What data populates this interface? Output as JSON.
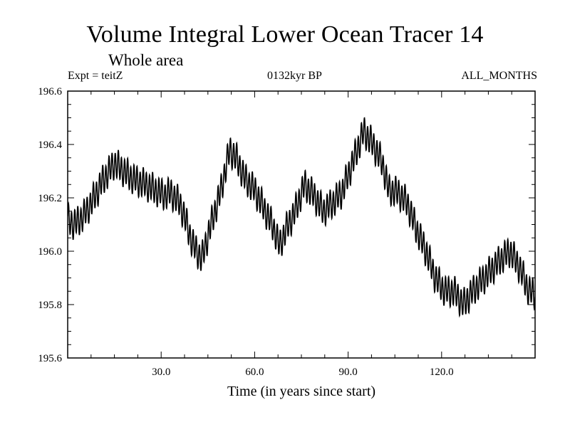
{
  "chart_data": {
    "type": "line",
    "title": "Volume Integral Lower Ocean Tracer 14",
    "subtitle": "Whole area",
    "experiment": "Expt = teitZ",
    "period": "0132kyr BP",
    "months": "ALL_MONTHS",
    "xlabel": "Time (in years since start)",
    "ylabel": "",
    "xlim": [
      0,
      150
    ],
    "ylim": [
      195.6,
      196.6
    ],
    "x_ticks": [
      30,
      60,
      90,
      120
    ],
    "x_tick_labels": [
      "30.0",
      "60.0",
      "90.0",
      "120.0"
    ],
    "y_ticks": [
      195.6,
      195.8,
      196.0,
      196.2,
      196.4,
      196.6
    ],
    "y_tick_labels": [
      "195.6",
      "195.8",
      "196.0",
      "196.2",
      "196.4",
      "196.6"
    ],
    "grid": false,
    "annual_cycle_amplitude": 0.05,
    "series": [
      {
        "name": "Volume Integral Lower Ocean Tracer 14",
        "color": "#000000",
        "x": [
          0,
          2,
          5,
          8,
          11,
          15,
          18,
          21,
          25,
          28,
          31,
          33,
          36,
          38,
          40,
          43,
          46,
          49,
          52,
          54,
          57,
          60,
          63,
          66,
          68,
          70,
          73,
          76,
          79,
          82,
          85,
          88,
          92,
          95,
          98,
          101,
          103,
          106,
          109,
          112,
          115,
          118,
          121,
          124,
          127,
          130,
          133,
          136,
          139,
          142,
          145,
          148,
          150
        ],
        "values": [
          196.12,
          196.1,
          196.13,
          196.19,
          196.26,
          196.33,
          196.3,
          196.27,
          196.25,
          196.23,
          196.21,
          196.22,
          196.18,
          196.11,
          196.03,
          195.97,
          196.1,
          196.22,
          196.38,
          196.35,
          196.27,
          196.23,
          196.16,
          196.09,
          196.02,
          196.08,
          196.15,
          196.25,
          196.21,
          196.15,
          196.18,
          196.22,
          196.35,
          196.45,
          196.4,
          196.33,
          196.23,
          196.22,
          196.18,
          196.08,
          196.0,
          195.9,
          195.85,
          195.85,
          195.8,
          195.85,
          195.89,
          195.93,
          195.97,
          196.0,
          195.94,
          195.85,
          195.84
        ]
      }
    ]
  }
}
